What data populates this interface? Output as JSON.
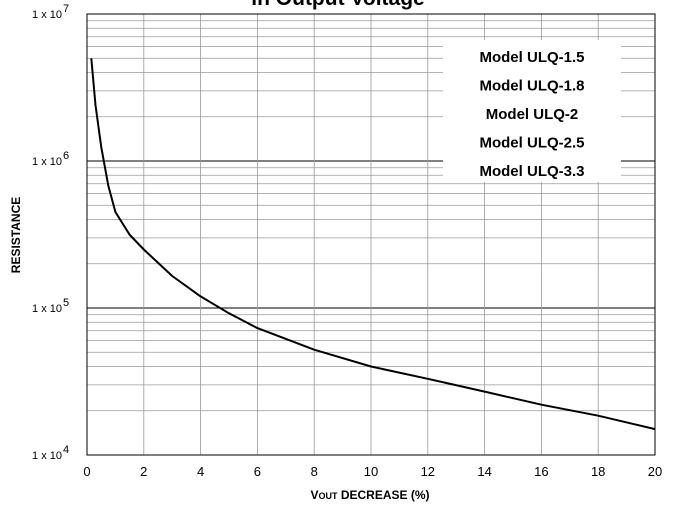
{
  "chart_data": {
    "type": "line",
    "title": "in Output Voltage",
    "xlabel": "VOUT DECREASE (%)",
    "ylabel": "RESISTANCE",
    "xlim": [
      0,
      20
    ],
    "ylim": [
      10000,
      10000000
    ],
    "yscale": "log",
    "grid": true,
    "x_ticks": [
      "0",
      "2",
      "4",
      "6",
      "8",
      "10",
      "12",
      "14",
      "16",
      "18",
      "20"
    ],
    "y_ticks": [
      {
        "base": "1 x 10",
        "exp": "7"
      },
      {
        "base": "1 x 10",
        "exp": "6"
      },
      {
        "base": "1 x 10",
        "exp": "5"
      },
      {
        "base": "1 x 10",
        "exp": "4"
      }
    ],
    "legend": {
      "position": "top-right",
      "entries": [
        "Model ULQ-1.5",
        "Model ULQ-1.8",
        "Model ULQ-2",
        "Model ULQ-2.5",
        "Model ULQ-3.3"
      ]
    },
    "series": [
      {
        "color": "#000000",
        "x": [
          0.15,
          0.3,
          0.5,
          0.75,
          1.0,
          1.5,
          2.0,
          3.0,
          4.0,
          5.0,
          6.0,
          8.0,
          10.0,
          12.0,
          14.0,
          16.0,
          18.0,
          20.0
        ],
        "y": [
          5000000,
          2400000,
          1250000,
          680000,
          450000,
          315000,
          250000,
          165000,
          120000,
          92000,
          73000,
          52000,
          40000,
          33000,
          27000,
          22000,
          18500,
          15000
        ]
      }
    ]
  }
}
